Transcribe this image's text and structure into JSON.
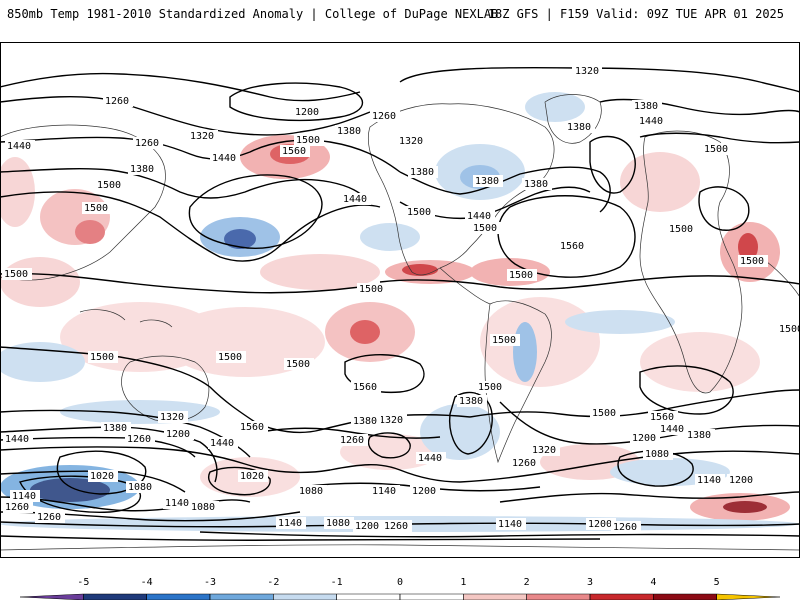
{
  "header": {
    "title": "850mb Temp 1981-2010 Standardized Anomaly | College of DuPage NEXLAB",
    "run_info": "18Z GFS | F159 Valid: 09Z TUE APR 01 2025"
  },
  "contour_labels": [
    {
      "value": "1320",
      "anchor": "n-pacific-top"
    },
    {
      "value": "1260",
      "anchor": "far-nw"
    },
    {
      "value": "1200",
      "anchor": "aleutian"
    },
    {
      "value": "1260",
      "anchor": "alaska-west"
    },
    {
      "value": "1380",
      "anchor": "bering"
    },
    {
      "value": "1320",
      "anchor": "nw-pacific"
    },
    {
      "value": "1260",
      "anchor": "kamchatka"
    },
    {
      "value": "1440",
      "anchor": "nw-edge"
    },
    {
      "value": "1380",
      "anchor": "japan-north"
    },
    {
      "value": "1440",
      "anchor": "nw-pacific-2"
    },
    {
      "value": "1560",
      "anchor": "n-pacific-ridge"
    },
    {
      "value": "1500",
      "anchor": "n-pacific-2"
    },
    {
      "value": "1500",
      "anchor": "china"
    },
    {
      "value": "1500",
      "anchor": "far-east-tibet"
    },
    {
      "value": "1440",
      "anchor": "ne-pacific"
    },
    {
      "value": "1380",
      "anchor": "nw-usa"
    },
    {
      "value": "1320",
      "anchor": "canada-west"
    },
    {
      "value": "1380",
      "anchor": "great-lakes"
    },
    {
      "value": "1500",
      "anchor": "texas"
    },
    {
      "value": "1440",
      "anchor": "east-us"
    },
    {
      "value": "1500",
      "anchor": "florida"
    },
    {
      "value": "1380",
      "anchor": "w-atlantic"
    },
    {
      "value": "1380",
      "anchor": "greenland"
    },
    {
      "value": "1380",
      "anchor": "europe-north"
    },
    {
      "value": "1440",
      "anchor": "scandinavia"
    },
    {
      "value": "1500",
      "anchor": "eastern-europe"
    },
    {
      "value": "1500",
      "anchor": "central-asia"
    },
    {
      "value": "1560",
      "anchor": "central-atlantic"
    },
    {
      "value": "1500",
      "anchor": "arabia"
    },
    {
      "value": "1500",
      "anchor": "west-edge"
    },
    {
      "value": "1500",
      "anchor": "east-edge"
    },
    {
      "value": "1500",
      "anchor": "caribbean"
    },
    {
      "value": "1500",
      "anchor": "mexico-pacific"
    },
    {
      "value": "1500",
      "anchor": "south-america"
    },
    {
      "value": "1500",
      "anchor": "w-indian"
    },
    {
      "value": "1500",
      "anchor": "australia-n"
    },
    {
      "value": "1500",
      "anchor": "s-pacific-n"
    },
    {
      "value": "1560",
      "anchor": "s-pacific-high"
    },
    {
      "value": "1500",
      "anchor": "s-america-s"
    },
    {
      "value": "1500",
      "anchor": "s-atlantic"
    },
    {
      "value": "1560",
      "anchor": "s-indian"
    },
    {
      "value": "1380",
      "anchor": "drake"
    },
    {
      "value": "1320",
      "anchor": "s-pacific-1"
    },
    {
      "value": "1380",
      "anchor": "s-pacific-2"
    },
    {
      "value": "1320",
      "anchor": "sw-pacific"
    },
    {
      "value": "1380",
      "anchor": "s-tasman"
    },
    {
      "value": "1260",
      "anchor": "s-australia"
    },
    {
      "value": "1200",
      "anchor": "s-tasman-2"
    },
    {
      "value": "1440",
      "anchor": "sw-edge"
    },
    {
      "value": "1560",
      "anchor": "s-pacific-low"
    },
    {
      "value": "1440",
      "anchor": "s-pacific-3"
    },
    {
      "value": "1260",
      "anchor": "s-pacific-4"
    },
    {
      "value": "1440",
      "anchor": "s-atlantic-2"
    },
    {
      "value": "1320",
      "anchor": "s-atlantic-3"
    },
    {
      "value": "1260",
      "anchor": "s-atlantic-4"
    },
    {
      "value": "1200",
      "anchor": "s-indian-2"
    },
    {
      "value": "1080",
      "anchor": "s-indian-3"
    },
    {
      "value": "1440",
      "anchor": "se-indian"
    },
    {
      "value": "1380",
      "anchor": "se-indian-2"
    },
    {
      "value": "1140",
      "anchor": "se-indian-3"
    },
    {
      "value": "1200",
      "anchor": "se-edge"
    },
    {
      "value": "1020",
      "anchor": "sw-low"
    },
    {
      "value": "1080",
      "anchor": "sw-low-2"
    },
    {
      "value": "1140",
      "anchor": "sw-low-3"
    },
    {
      "value": "1140",
      "anchor": "sw-edge-2"
    },
    {
      "value": "1260",
      "anchor": "sw-edge-3"
    },
    {
      "value": "1260",
      "anchor": "sw-low-4"
    },
    {
      "value": "1080",
      "anchor": "antarctic-1"
    },
    {
      "value": "1020",
      "anchor": "ross"
    },
    {
      "value": "1080",
      "anchor": "antarctic-2"
    },
    {
      "value": "1140",
      "anchor": "antarctic-3"
    },
    {
      "value": "1200",
      "anchor": "antarctic-4"
    },
    {
      "value": "1140",
      "anchor": "antarctic-5"
    },
    {
      "value": "1080",
      "anchor": "antarctic-6"
    },
    {
      "value": "1200",
      "anchor": "antarctic-7"
    },
    {
      "value": "1260",
      "anchor": "antarctic-8"
    },
    {
      "value": "1140",
      "anchor": "antarctic-9"
    },
    {
      "value": "1200",
      "anchor": "antarctic-10"
    },
    {
      "value": "1260",
      "anchor": "antarctic-11"
    }
  ],
  "colorbar": {
    "ticks": [
      "-5",
      "-4",
      "-3",
      "-2",
      "-1",
      "0",
      "1",
      "2",
      "3",
      "4",
      "5"
    ],
    "colors": [
      "#6a3d9a",
      "#1f3a7a",
      "#2b74c8",
      "#6fa8dc",
      "#c6dbef",
      "#ffffff",
      "#ffffff",
      "#f4c7c3",
      "#e8888a",
      "#c8282c",
      "#8c0a14",
      "#f5c400"
    ]
  }
}
